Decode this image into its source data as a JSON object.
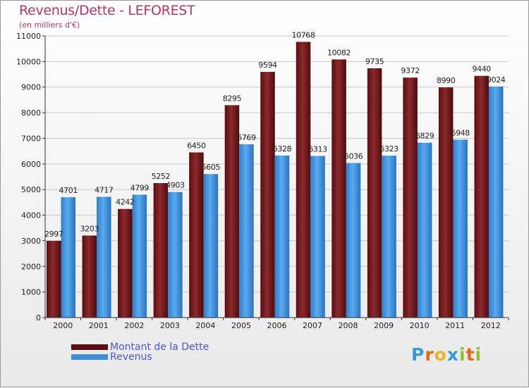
{
  "header": {
    "title": "Revenus/Dette - LEFOREST",
    "subtitle": "(en milliers d'€)"
  },
  "colors": {
    "debt": "#6e1b1f",
    "revenue": "#3d8fdb",
    "title": "#b4336a",
    "legend_text": "#4a57d6"
  },
  "legend": {
    "items": [
      {
        "label": "Montant de la Dette",
        "color": "#5c0f12"
      },
      {
        "label": "Revenus",
        "color": "#3d8fdb"
      }
    ]
  },
  "logo": {
    "letters": [
      "P",
      "r",
      "o",
      "x",
      "i",
      "t",
      "i"
    ],
    "colors": [
      "#3a9ad9",
      "#e06b1f",
      "#f0b429",
      "#3a9ad9",
      "#8fc23a",
      "#e06b1f",
      "#8fc23a"
    ]
  },
  "chart_data": {
    "type": "bar",
    "title": "Revenus/Dette - LEFOREST",
    "categories": [
      "2000",
      "2001",
      "2002",
      "2003",
      "2004",
      "2005",
      "2006",
      "2007",
      "2008",
      "2009",
      "2010",
      "2011",
      "2012"
    ],
    "series": [
      {
        "name": "Montant de la Dette",
        "values": [
          2997,
          3203,
          4242,
          5252,
          6450,
          8295,
          9594,
          10768,
          10082,
          9735,
          9372,
          8990,
          9440
        ]
      },
      {
        "name": "Revenus",
        "values": [
          4701,
          4717,
          4799,
          4903,
          5605,
          6769,
          6328,
          6313,
          6036,
          6323,
          6829,
          6948,
          9024
        ]
      }
    ],
    "ylim": [
      0,
      11000
    ],
    "yticks": [
      0,
      1000,
      2000,
      3000,
      4000,
      5000,
      6000,
      7000,
      8000,
      9000,
      10000,
      11000
    ],
    "grid": true,
    "legend_position": "bottom-left"
  }
}
